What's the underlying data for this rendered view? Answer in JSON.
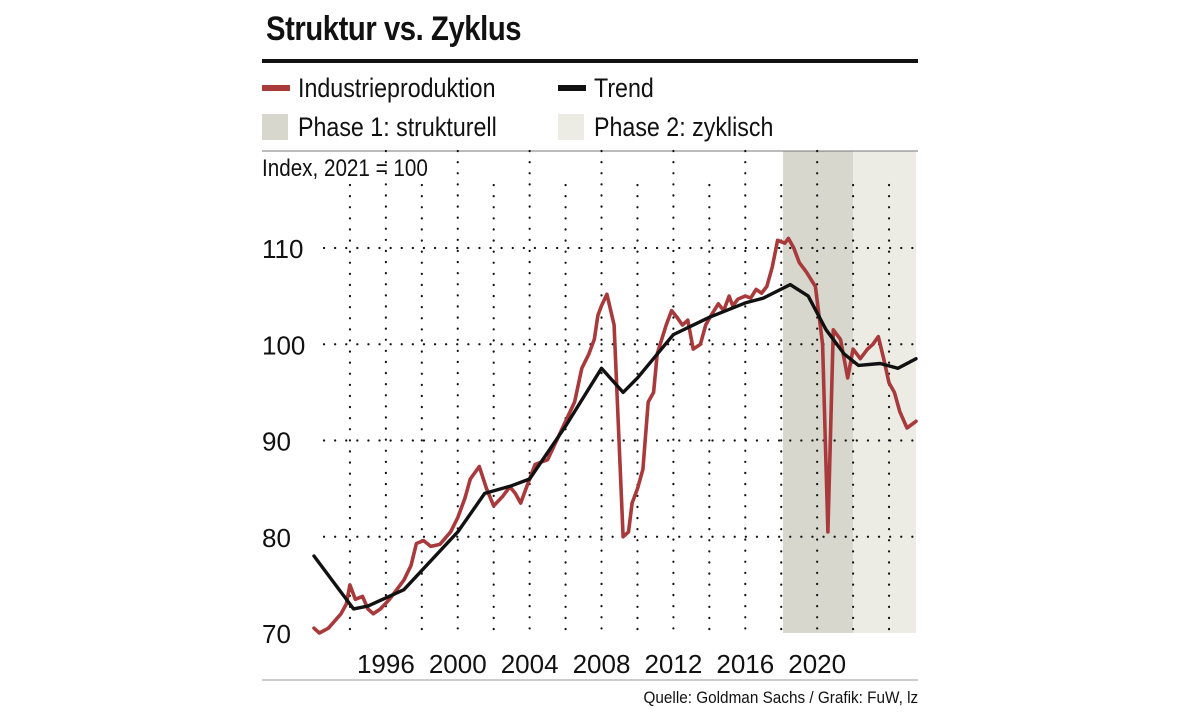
{
  "header": {
    "title": "Struktur vs. Zyklus"
  },
  "legend": {
    "production": {
      "label": "Industrieproduktion",
      "color": "#a83a3c"
    },
    "trend": {
      "label": "Trend",
      "color": "#111111"
    },
    "phase1": {
      "label": "Phase 1: strukturell",
      "color": "#d7d7ce"
    },
    "phase2": {
      "label": "Phase 2: zyklisch",
      "color": "#ecebe4"
    }
  },
  "unit_label": "Index, 2021 = 100",
  "source": "Quelle: Goldman  Sachs / Grafik: FuW, lz",
  "chart_data": {
    "type": "line",
    "title": "Struktur vs. Zyklus",
    "ylabel": "Index, 2021 = 100",
    "xlabel": "",
    "xlim": [
      1992.0,
      2025.5
    ],
    "ylim": [
      70,
      120
    ],
    "x_ticks": [
      1996,
      2000,
      2004,
      2008,
      2012,
      2016,
      2020
    ],
    "y_ticks": [
      70,
      80,
      90,
      100,
      110
    ],
    "grid": true,
    "phases": [
      {
        "name": "Phase 1: strukturell",
        "start": 2018.1,
        "end": 2022.0
      },
      {
        "name": "Phase 2: zyklisch",
        "start": 2022.0,
        "end": 2025.5
      }
    ],
    "series": [
      {
        "name": "Industrieproduktion",
        "color": "#a83a3c",
        "points": [
          [
            1992.0,
            70.5
          ],
          [
            1992.3,
            70.0
          ],
          [
            1992.8,
            70.5
          ],
          [
            1993.5,
            72.0
          ],
          [
            1993.8,
            73.0
          ],
          [
            1994.0,
            75.0
          ],
          [
            1994.3,
            73.5
          ],
          [
            1994.7,
            73.8
          ],
          [
            1995.0,
            72.5
          ],
          [
            1995.3,
            72.0
          ],
          [
            1995.7,
            72.5
          ],
          [
            1996.2,
            73.5
          ],
          [
            1996.6,
            74.5
          ],
          [
            1997.0,
            75.5
          ],
          [
            1997.4,
            77.0
          ],
          [
            1997.7,
            79.3
          ],
          [
            1998.1,
            79.6
          ],
          [
            1998.5,
            79.0
          ],
          [
            1999.0,
            79.2
          ],
          [
            1999.6,
            80.5
          ],
          [
            2000.0,
            82.0
          ],
          [
            2000.4,
            84.0
          ],
          [
            2000.7,
            86.0
          ],
          [
            2001.2,
            87.3
          ],
          [
            2001.6,
            85.0
          ],
          [
            2002.0,
            83.2
          ],
          [
            2002.5,
            84.2
          ],
          [
            2002.9,
            85.2
          ],
          [
            2003.2,
            84.5
          ],
          [
            2003.5,
            83.5
          ],
          [
            2003.8,
            85.0
          ],
          [
            2004.0,
            86.0
          ],
          [
            2004.3,
            87.5
          ],
          [
            2004.7,
            87.8
          ],
          [
            2005.0,
            88.0
          ],
          [
            2005.5,
            90.0
          ],
          [
            2006.0,
            92.0
          ],
          [
            2006.5,
            94.0
          ],
          [
            2006.9,
            97.5
          ],
          [
            2007.3,
            99.0
          ],
          [
            2007.6,
            100.5
          ],
          [
            2007.8,
            103.0
          ],
          [
            2008.0,
            104.0
          ],
          [
            2008.3,
            105.2
          ],
          [
            2008.7,
            102.0
          ],
          [
            2009.2,
            80.0
          ],
          [
            2009.5,
            80.5
          ],
          [
            2009.7,
            83.5
          ],
          [
            2010.0,
            85.0
          ],
          [
            2010.3,
            87.0
          ],
          [
            2010.6,
            94.0
          ],
          [
            2010.9,
            95.0
          ],
          [
            2011.1,
            99.0
          ],
          [
            2011.6,
            102.0
          ],
          [
            2011.9,
            103.5
          ],
          [
            2012.2,
            102.8
          ],
          [
            2012.5,
            102.0
          ],
          [
            2012.8,
            102.5
          ],
          [
            2013.1,
            99.5
          ],
          [
            2013.5,
            100.0
          ],
          [
            2013.8,
            102.0
          ],
          [
            2014.1,
            103.0
          ],
          [
            2014.5,
            104.2
          ],
          [
            2014.8,
            103.5
          ],
          [
            2015.1,
            105.0
          ],
          [
            2015.3,
            104.0
          ],
          [
            2015.6,
            104.7
          ],
          [
            2016.0,
            105.0
          ],
          [
            2016.3,
            104.8
          ],
          [
            2016.6,
            105.7
          ],
          [
            2016.9,
            105.3
          ],
          [
            2017.2,
            106.0
          ],
          [
            2017.5,
            108.0
          ],
          [
            2017.8,
            110.8
          ],
          [
            2018.2,
            110.5
          ],
          [
            2018.4,
            111.0
          ],
          [
            2018.7,
            110.0
          ],
          [
            2019.0,
            108.5
          ],
          [
            2019.4,
            107.5
          ],
          [
            2019.9,
            106.0
          ],
          [
            2020.3,
            100.0
          ],
          [
            2020.6,
            80.5
          ],
          [
            2020.9,
            101.5
          ],
          [
            2021.3,
            100.5
          ],
          [
            2021.7,
            96.5
          ],
          [
            2022.0,
            99.5
          ],
          [
            2022.4,
            98.5
          ],
          [
            2022.8,
            99.5
          ],
          [
            2023.1,
            100.0
          ],
          [
            2023.4,
            100.8
          ],
          [
            2023.7,
            98.5
          ],
          [
            2024.0,
            96.0
          ],
          [
            2024.3,
            95.0
          ],
          [
            2024.6,
            93.0
          ],
          [
            2025.0,
            91.3
          ],
          [
            2025.5,
            92.0
          ]
        ]
      },
      {
        "name": "Trend",
        "color": "#111111",
        "points": [
          [
            1992.0,
            78.0
          ],
          [
            1993.0,
            75.5
          ],
          [
            1994.2,
            72.5
          ],
          [
            1995.0,
            72.8
          ],
          [
            1997.0,
            74.5
          ],
          [
            2000.0,
            80.5
          ],
          [
            2001.5,
            84.5
          ],
          [
            2003.0,
            85.3
          ],
          [
            2004.0,
            86.0
          ],
          [
            2006.0,
            91.5
          ],
          [
            2008.0,
            97.5
          ],
          [
            2009.2,
            95.0
          ],
          [
            2010.0,
            96.5
          ],
          [
            2012.0,
            101.0
          ],
          [
            2014.0,
            102.8
          ],
          [
            2016.0,
            104.3
          ],
          [
            2017.0,
            104.8
          ],
          [
            2018.5,
            106.2
          ],
          [
            2019.5,
            105.0
          ],
          [
            2020.5,
            101.5
          ],
          [
            2021.5,
            99.0
          ],
          [
            2022.3,
            97.8
          ],
          [
            2023.5,
            98.0
          ],
          [
            2024.5,
            97.5
          ],
          [
            2025.5,
            98.5
          ]
        ]
      }
    ]
  }
}
